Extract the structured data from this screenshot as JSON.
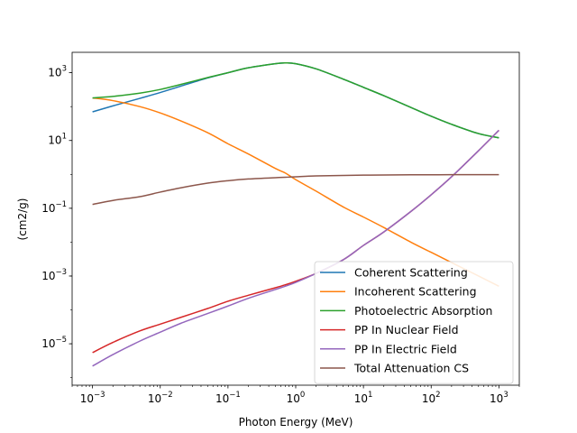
{
  "chart_data": {
    "type": "line",
    "title": "",
    "xlabel": "Photon Energy (MeV)",
    "ylabel": "(cm2/g)",
    "xscale": "log",
    "yscale": "log",
    "xlim": [
      0.0005,
      2000
    ],
    "ylim": [
      6e-07,
      4000
    ],
    "grid": false,
    "legend_position": "lower-right",
    "x_ticks": [
      {
        "value": 0.001,
        "base": "10",
        "exp": "−3"
      },
      {
        "value": 0.01,
        "base": "10",
        "exp": "−2"
      },
      {
        "value": 0.1,
        "base": "10",
        "exp": "−1"
      },
      {
        "value": 1,
        "base": "10",
        "exp": "0"
      },
      {
        "value": 10,
        "base": "10",
        "exp": "1"
      },
      {
        "value": 100,
        "base": "10",
        "exp": "2"
      },
      {
        "value": 1000,
        "base": "10",
        "exp": "3"
      }
    ],
    "y_ticks": [
      {
        "value": 1e-05,
        "base": "10",
        "exp": "−5"
      },
      {
        "value": 0.001,
        "base": "10",
        "exp": "−3"
      },
      {
        "value": 0.1,
        "base": "10",
        "exp": "−1"
      },
      {
        "value": 10,
        "base": "10",
        "exp": "1"
      },
      {
        "value": 1000,
        "base": "10",
        "exp": "3"
      }
    ],
    "x": [
      0.001,
      0.002,
      0.005,
      0.01,
      0.02,
      0.05,
      0.1,
      0.2,
      0.5,
      0.7,
      1,
      2,
      5,
      10,
      20,
      50,
      100,
      200,
      500,
      1000
    ],
    "series": [
      {
        "name": "Coherent Scattering",
        "color": "#1f77b4",
        "values": [
          70,
          105,
          175,
          260,
          400,
          700,
          1000,
          1400,
          1850,
          1950,
          1850,
          1300,
          650,
          370,
          210,
          95,
          52,
          30,
          16,
          12
        ]
      },
      {
        "name": "Incoherent Scattering",
        "color": "#ff7f0e",
        "values": [
          180,
          150,
          100,
          65,
          38,
          17,
          8,
          4,
          1.5,
          1.1,
          0.7,
          0.32,
          0.11,
          0.055,
          0.027,
          0.01,
          0.005,
          0.0025,
          0.001,
          0.0005
        ]
      },
      {
        "name": "Photoelectric Absorption",
        "color": "#2ca02c",
        "values": [
          180,
          200,
          250,
          320,
          450,
          720,
          1000,
          1400,
          1850,
          1950,
          1850,
          1300,
          650,
          370,
          210,
          95,
          52,
          30,
          16,
          12
        ]
      },
      {
        "name": "PP In Nuclear Field",
        "color": "#d62728",
        "values": [
          5.5e-06,
          1.1e-05,
          2.4e-05,
          3.8e-05,
          6e-05,
          0.00011,
          0.00018,
          0.00027,
          0.00045,
          0.00055,
          0.0007,
          0.0012,
          0.003,
          0.008,
          0.02,
          0.08,
          0.25,
          0.85,
          5,
          20
        ]
      },
      {
        "name": "PP In Electric Field",
        "color": "#9467bd",
        "values": [
          2.2e-06,
          4.8e-06,
          1.2e-05,
          2.2e-05,
          4e-05,
          7.8e-05,
          0.00013,
          0.00022,
          0.0004,
          0.0005,
          0.00065,
          0.0012,
          0.003,
          0.008,
          0.02,
          0.08,
          0.25,
          0.85,
          5,
          20
        ]
      },
      {
        "name": "Total Attenuation CS",
        "color": "#8c564b",
        "values": [
          0.13,
          0.17,
          0.22,
          0.3,
          0.4,
          0.55,
          0.65,
          0.73,
          0.8,
          0.82,
          0.85,
          0.9,
          0.93,
          0.95,
          0.96,
          0.97,
          0.97,
          0.98,
          0.98,
          0.98
        ]
      }
    ]
  }
}
